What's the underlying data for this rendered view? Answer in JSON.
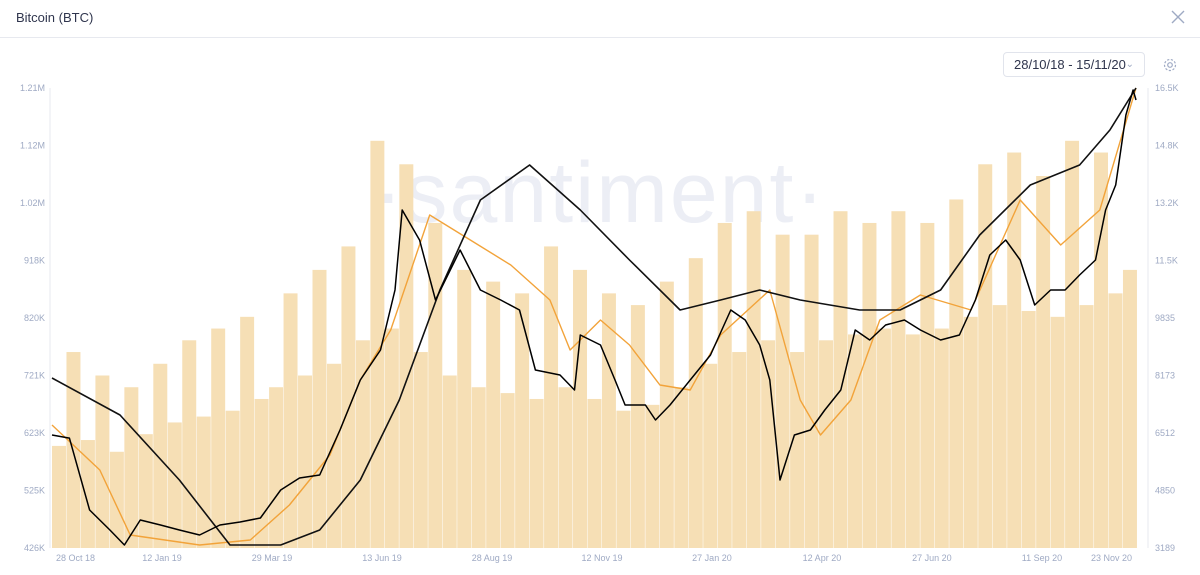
{
  "header": {
    "title": "Bitcoin (BTC)",
    "close_icon": "close-icon"
  },
  "controls": {
    "date_range": "28/10/18 - 15/11/20",
    "settings_icon": "gear-icon"
  },
  "watermark": "·santiment·",
  "colors": {
    "price": "#000000",
    "short_ma": "#f2a33a",
    "long_ma": "#111111",
    "volume": "#f6dfb5"
  },
  "chart_data": {
    "type": "line",
    "x_range": [
      "2018-10-28",
      "2020-11-15"
    ],
    "x_ticks": [
      "28 Oct 18",
      "12 Jan 19",
      "29 Mar 19",
      "13 Jun 19",
      "28 Aug 19",
      "12 Nov 19",
      "27 Jan 20",
      "12 Apr 20",
      "27 Jun 20",
      "11 Sep 20",
      "23 Nov 20"
    ],
    "x_tick_dates": [
      "2018-10-28",
      "2019-01-12",
      "2019-03-29",
      "2019-06-13",
      "2019-08-28",
      "2019-11-12",
      "2020-01-27",
      "2020-04-12",
      "2020-06-27",
      "2020-09-11",
      "2020-11-15"
    ],
    "left_axis": {
      "ticks": [
        "426K",
        "525K",
        "623K",
        "721K",
        "820K",
        "918K",
        "1.02M",
        "1.12M",
        "1.21M"
      ],
      "range": [
        426000,
        1210000
      ]
    },
    "right_axis": {
      "ticks": [
        "3189",
        "4850",
        "6512",
        "8173",
        "9835",
        "11.5K",
        "13.2K",
        "14.8K",
        "16.5K"
      ],
      "range": [
        3189,
        16500
      ]
    },
    "grid": false,
    "volume": {
      "axis": "left",
      "start": "2018-10-28",
      "interval_days": 10,
      "values": [
        600000,
        760000,
        610000,
        720000,
        590000,
        700000,
        620000,
        740000,
        640000,
        780000,
        650000,
        800000,
        660000,
        820000,
        680000,
        700000,
        860000,
        720000,
        900000,
        740000,
        940000,
        780000,
        1120000,
        800000,
        1080000,
        760000,
        980000,
        720000,
        900000,
        700000,
        880000,
        690000,
        860000,
        680000,
        940000,
        700000,
        900000,
        680000,
        860000,
        660000,
        840000,
        670000,
        880000,
        700000,
        920000,
        740000,
        980000,
        760000,
        1000000,
        780000,
        960000,
        760000,
        960000,
        780000,
        1000000,
        790000,
        980000,
        800000,
        1000000,
        790000,
        980000,
        800000,
        1020000,
        820000,
        1080000,
        840000,
        1100000,
        830000,
        1060000,
        820000,
        1120000,
        840000,
        1100000,
        860000,
        900000
      ]
    },
    "price": {
      "axis": "right",
      "points": [
        [
          "2018-10-28",
          6459
        ],
        [
          "2018-11-09",
          6370
        ],
        [
          "2018-11-23",
          4289
        ],
        [
          "2018-12-07",
          3710
        ],
        [
          "2018-12-17",
          3276
        ],
        [
          "2018-12-28",
          4000
        ],
        [
          "2019-01-11",
          3855
        ],
        [
          "2019-01-24",
          3710
        ],
        [
          "2019-02-07",
          3565
        ],
        [
          "2019-02-21",
          3855
        ],
        [
          "2019-03-07",
          3942
        ],
        [
          "2019-03-21",
          4058
        ],
        [
          "2019-04-04",
          4867
        ],
        [
          "2019-04-17",
          5215
        ],
        [
          "2019-05-01",
          5302
        ],
        [
          "2019-05-15",
          6604
        ],
        [
          "2019-05-29",
          8050
        ],
        [
          "2019-06-12",
          8919
        ],
        [
          "2019-06-22",
          10655
        ],
        [
          "2019-06-27",
          12970
        ],
        [
          "2019-07-09",
          12100
        ],
        [
          "2019-07-20",
          10366
        ],
        [
          "2019-08-06",
          11813
        ],
        [
          "2019-08-20",
          10655
        ],
        [
          "2019-09-03",
          10366
        ],
        [
          "2019-09-16",
          10077
        ],
        [
          "2019-09-27",
          8340
        ],
        [
          "2019-10-14",
          8196
        ],
        [
          "2019-10-24",
          7761
        ],
        [
          "2019-10-28",
          9353
        ],
        [
          "2019-11-11",
          9064
        ],
        [
          "2019-11-21",
          8050
        ],
        [
          "2019-11-28",
          7327
        ],
        [
          "2019-12-12",
          7327
        ],
        [
          "2019-12-19",
          6893
        ],
        [
          "2019-12-29",
          7327
        ],
        [
          "2020-01-12",
          8050
        ],
        [
          "2020-01-26",
          8774
        ],
        [
          "2020-02-09",
          10077
        ],
        [
          "2020-02-19",
          9787
        ],
        [
          "2020-02-29",
          9064
        ],
        [
          "2020-03-07",
          8050
        ],
        [
          "2020-03-14",
          5157
        ],
        [
          "2020-03-24",
          6459
        ],
        [
          "2020-04-04",
          6604
        ],
        [
          "2020-04-14",
          7183
        ],
        [
          "2020-04-25",
          7761
        ],
        [
          "2020-05-05",
          9498
        ],
        [
          "2020-05-15",
          9208
        ],
        [
          "2020-05-26",
          9642
        ],
        [
          "2020-06-08",
          9787
        ],
        [
          "2020-06-19",
          9498
        ],
        [
          "2020-07-03",
          9208
        ],
        [
          "2020-07-16",
          9353
        ],
        [
          "2020-07-27",
          10366
        ],
        [
          "2020-08-06",
          11668
        ],
        [
          "2020-08-17",
          12102
        ],
        [
          "2020-08-27",
          11524
        ],
        [
          "2020-09-06",
          10221
        ],
        [
          "2020-09-17",
          10655
        ],
        [
          "2020-09-27",
          10655
        ],
        [
          "2020-10-07",
          11090
        ],
        [
          "2020-10-18",
          11524
        ],
        [
          "2020-10-25",
          12970
        ],
        [
          "2020-11-01",
          13694
        ],
        [
          "2020-11-08",
          15720
        ],
        [
          "2020-11-13",
          16443
        ],
        [
          "2020-11-15",
          16154
        ]
      ]
    },
    "short_ma": {
      "axis": "right",
      "points": [
        [
          "2018-10-28",
          6749
        ],
        [
          "2018-11-30",
          5446
        ],
        [
          "2018-12-21",
          3565
        ],
        [
          "2019-02-07",
          3276
        ],
        [
          "2019-03-14",
          3421
        ],
        [
          "2019-04-10",
          4433
        ],
        [
          "2019-05-08",
          5880
        ],
        [
          "2019-05-29",
          8051
        ],
        [
          "2019-06-19",
          9498
        ],
        [
          "2019-07-16",
          12826
        ],
        [
          "2019-08-13",
          12102
        ],
        [
          "2019-09-10",
          11379
        ],
        [
          "2019-10-07",
          10366
        ],
        [
          "2019-10-21",
          8919
        ],
        [
          "2019-11-11",
          9787
        ],
        [
          "2019-12-01",
          9064
        ],
        [
          "2019-12-22",
          7906
        ],
        [
          "2020-01-12",
          7761
        ],
        [
          "2020-02-02",
          9353
        ],
        [
          "2020-03-07",
          10655
        ],
        [
          "2020-03-28",
          7472
        ],
        [
          "2020-04-11",
          6459
        ],
        [
          "2020-05-02",
          7472
        ],
        [
          "2020-05-22",
          9787
        ],
        [
          "2020-06-19",
          10511
        ],
        [
          "2020-07-24",
          10077
        ],
        [
          "2020-08-27",
          13260
        ],
        [
          "2020-09-24",
          11958
        ],
        [
          "2020-10-21",
          12971
        ],
        [
          "2020-11-15",
          16500
        ]
      ]
    },
    "long_ma": {
      "axis": "right",
      "points": [
        [
          "2018-10-28",
          8109
        ],
        [
          "2018-12-14",
          7038
        ],
        [
          "2019-01-24",
          5157
        ],
        [
          "2019-02-28",
          3276
        ],
        [
          "2019-04-04",
          3276
        ],
        [
          "2019-05-01",
          3710
        ],
        [
          "2019-05-29",
          5157
        ],
        [
          "2019-06-25",
          7472
        ],
        [
          "2019-07-23",
          10655
        ],
        [
          "2019-08-20",
          13260
        ],
        [
          "2019-09-23",
          14273
        ],
        [
          "2019-10-28",
          12971
        ],
        [
          "2019-12-01",
          11524
        ],
        [
          "2020-01-05",
          10077
        ],
        [
          "2020-02-02",
          10366
        ],
        [
          "2020-02-29",
          10655
        ],
        [
          "2020-03-28",
          10366
        ],
        [
          "2020-05-08",
          10077
        ],
        [
          "2020-06-05",
          10077
        ],
        [
          "2020-07-03",
          10655
        ],
        [
          "2020-07-30",
          12247
        ],
        [
          "2020-09-03",
          13694
        ],
        [
          "2020-10-07",
          14273
        ],
        [
          "2020-10-28",
          15286
        ],
        [
          "2020-11-15",
          16500
        ]
      ]
    }
  }
}
